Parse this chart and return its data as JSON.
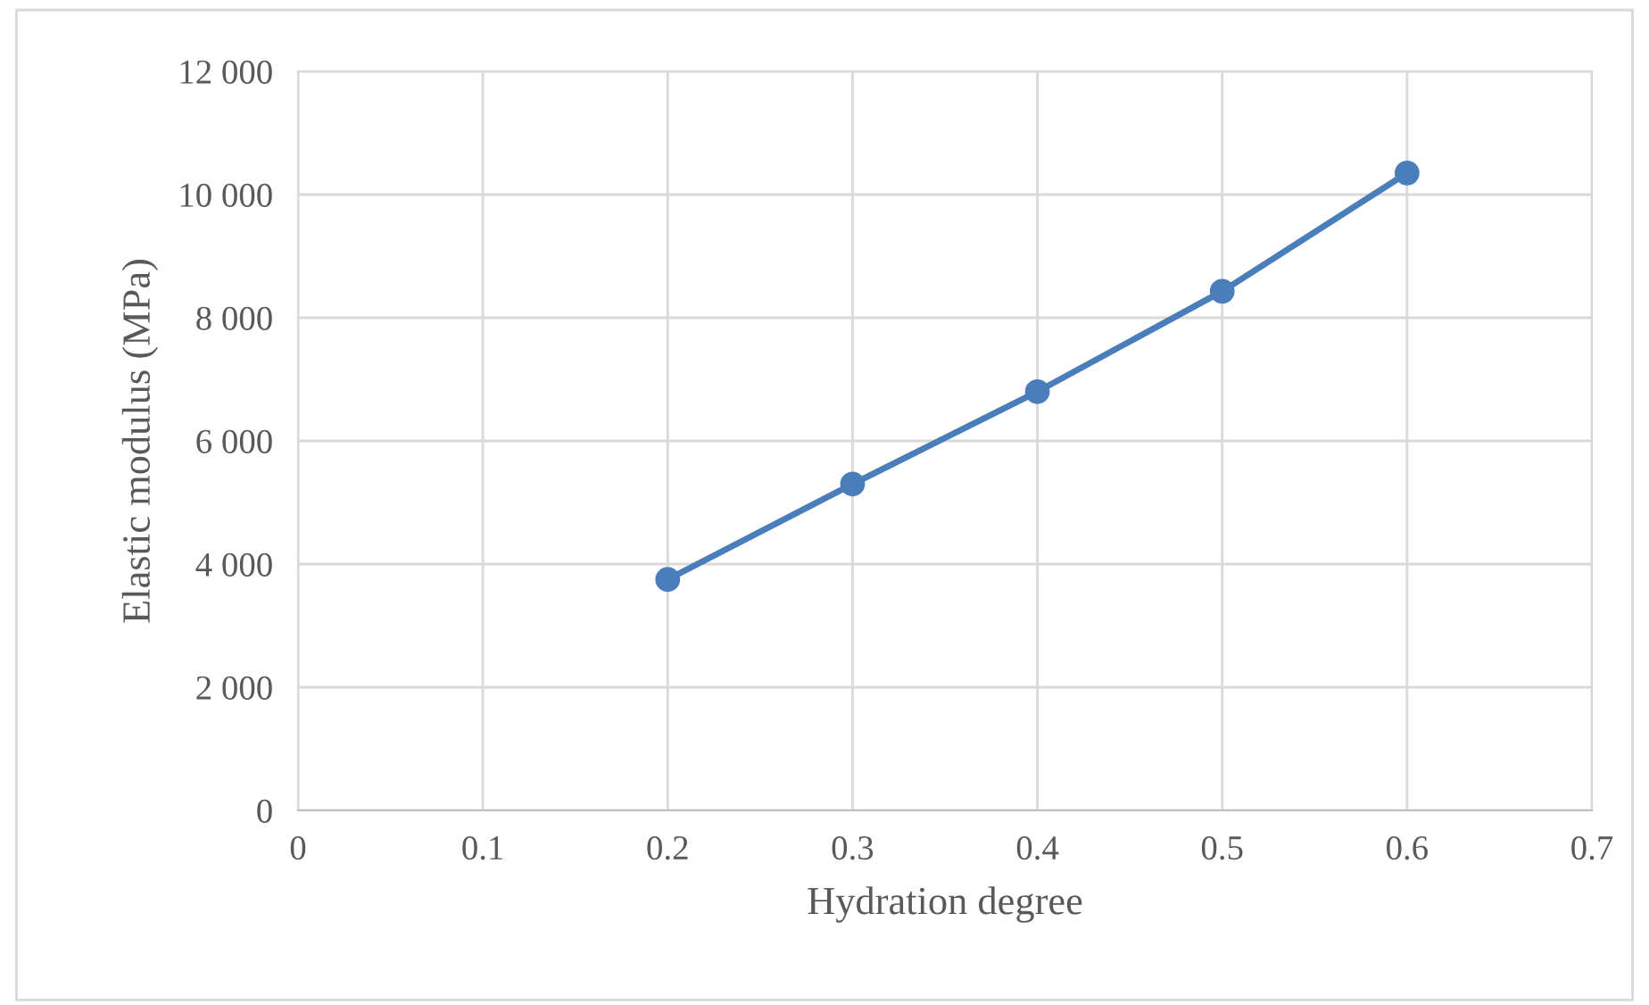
{
  "chart_data": {
    "type": "line",
    "xlabel": "Hydration degree",
    "ylabel": "Elastic modulus (MPa)",
    "x": [
      0.2,
      0.3,
      0.4,
      0.5,
      0.6
    ],
    "series": [
      {
        "color": "#4a7ebb",
        "values": [
          3750,
          5300,
          6800,
          8430,
          10350
        ]
      }
    ],
    "xlim": [
      0,
      0.7
    ],
    "xticks": [
      0,
      0.1,
      0.2,
      0.3,
      0.4,
      0.5,
      0.6,
      0.7
    ],
    "ylim": [
      0,
      12000
    ],
    "yticks": [
      0,
      {
        "value": 2000,
        "label": "2 000"
      },
      {
        "value": 4000,
        "label": "4 000"
      },
      {
        "value": 6000,
        "label": "6 000"
      },
      {
        "value": 8000,
        "label": "8 000"
      },
      {
        "value": 10000,
        "label": "10 000"
      },
      {
        "value": 12000,
        "label": "12 000"
      }
    ],
    "grid": true,
    "marker": "circle",
    "line_style": "solid",
    "legend": false
  }
}
